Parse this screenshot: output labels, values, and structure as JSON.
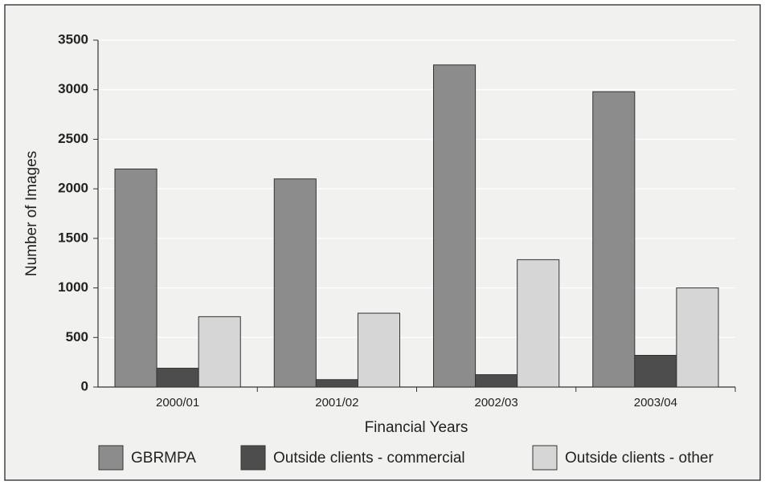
{
  "chart_data": {
    "type": "bar",
    "categories": [
      "2000/01",
      "2001/02",
      "2002/03",
      "2003/04"
    ],
    "series": [
      {
        "name": "GBRMPA",
        "color": "#8c8c8c",
        "values": [
          2200,
          2100,
          3250,
          2980
        ]
      },
      {
        "name": "Outside clients - commercial",
        "color": "#4d4d4d",
        "values": [
          190,
          75,
          125,
          320
        ]
      },
      {
        "name": "Outside clients - other",
        "color": "#d6d6d6",
        "values": [
          710,
          745,
          1285,
          1000
        ]
      }
    ],
    "ylim": [
      0,
      3500
    ],
    "yticks": [
      0,
      500,
      1000,
      1500,
      2000,
      2500,
      3000,
      3500
    ],
    "y_label": "Number of Images",
    "x_label": "Financial Years",
    "grid": true,
    "legend": "bottom"
  }
}
